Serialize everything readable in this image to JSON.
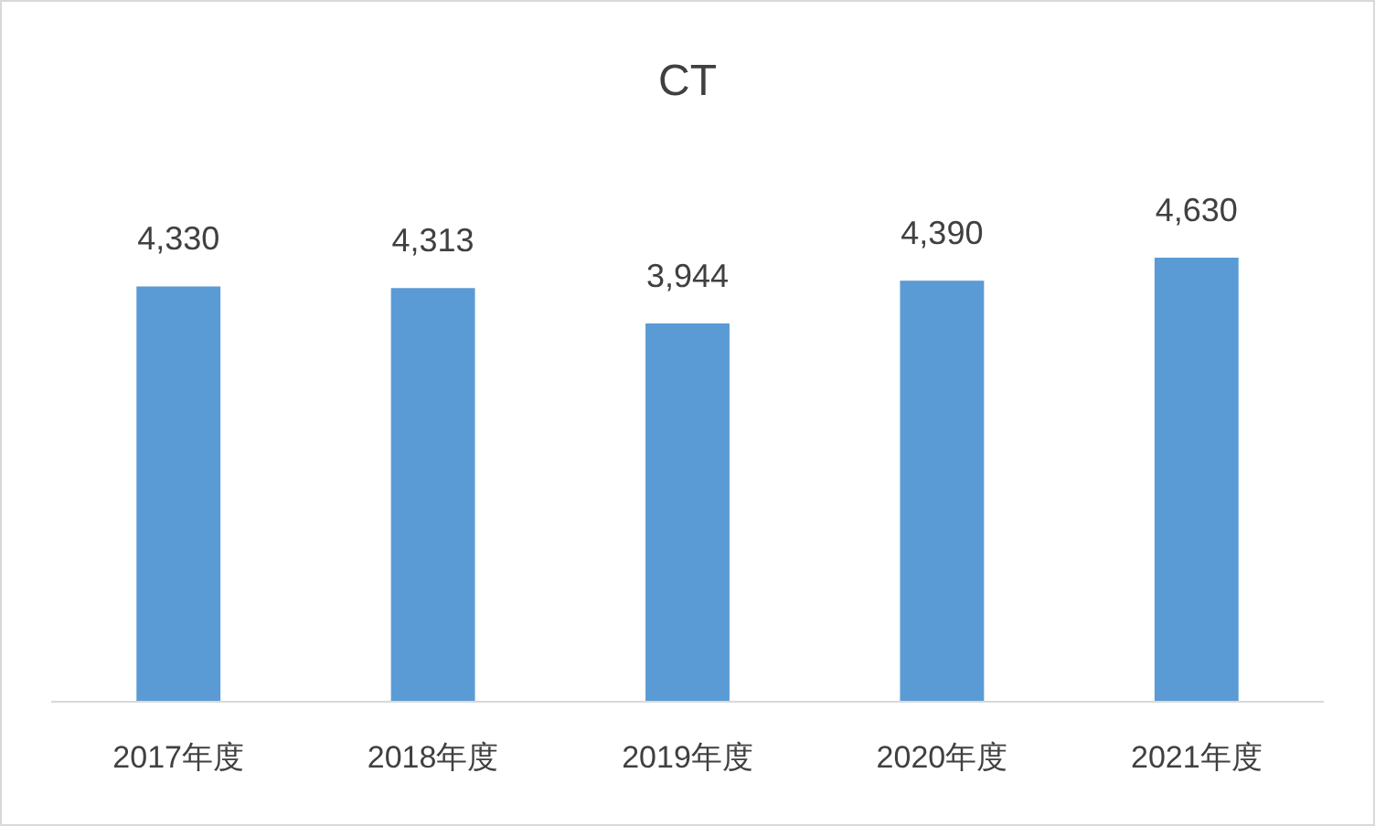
{
  "chart_data": {
    "type": "bar",
    "title": "CT",
    "categories": [
      "2017年度",
      "2018年度",
      "2019年度",
      "2020年度",
      "2021年度"
    ],
    "values": [
      4330,
      4313,
      3944,
      4390,
      4630
    ],
    "value_labels": [
      "4,330",
      "4,313",
      "3,944",
      "4,390",
      "4,630"
    ],
    "color": "#5b9bd5"
  }
}
